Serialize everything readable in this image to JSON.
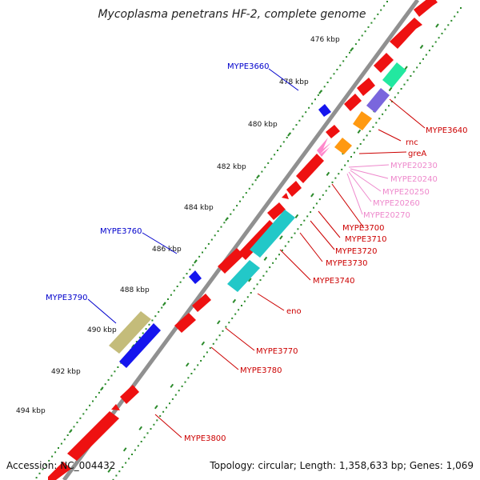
{
  "title": "Mycoplasma penetrans HF-2, complete genome",
  "footer": {
    "accession": "Accession: NC_004432",
    "topology": "Topology: circular; Length: 1,358,633 bp; Genes: 1,069"
  },
  "colors": {
    "backbone": "#909090",
    "tick": "#2a8a2a",
    "red_gene": "#ee1111",
    "blue_gene": "#1515ee",
    "cyan_gene": "#22c8c8",
    "teal_gene": "#22e8a0",
    "purple_gene": "#7a66dd",
    "orange_gene": "#ff9911",
    "olive_gene": "#c4bc7a",
    "pink_gene": "#ff88cc",
    "label_red": "#cc0000",
    "label_blue": "#0000cc",
    "label_pink": "#ee88cc"
  },
  "ticks": [
    "476 kbp",
    "478 kbp",
    "480 kbp",
    "482 kbp",
    "484 kbp",
    "486 kbp",
    "488 kbp",
    "490 kbp",
    "492 kbp",
    "494 kbp"
  ],
  "labels": {
    "blue": [
      "MYPE3660",
      "MYPE3760",
      "MYPE3790"
    ],
    "red": [
      "MYPE3640",
      "rnc",
      "greA",
      "MYPE3700",
      "MYPE3710",
      "MYPE3720",
      "MYPE3730",
      "MYPE3740",
      "eno",
      "MYPE3770",
      "MYPE3780",
      "MYPE3800"
    ],
    "pink": [
      "MYPE20230",
      "MYPE20240",
      "MYPE20250",
      "MYPE20260",
      "MYPE20270"
    ]
  }
}
